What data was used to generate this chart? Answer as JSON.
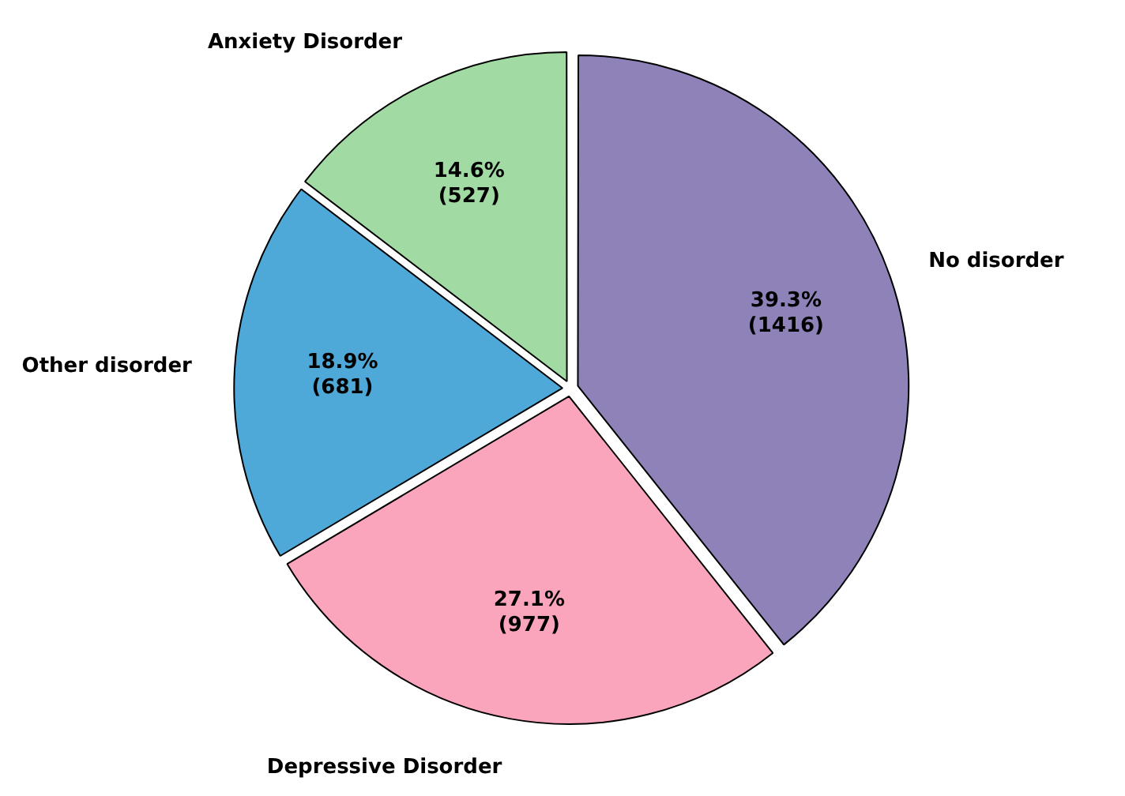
{
  "chart_data": {
    "type": "pie",
    "categories": [
      "No disorder",
      "Depressive Disorder",
      "Other disorder",
      "Anxiety Disorder"
    ],
    "values": [
      1416,
      977,
      681,
      527
    ],
    "colors": [
      "#8e82b9",
      "#fba5bd",
      "#4ea8d8",
      "#a2daa4"
    ],
    "value_labels": [
      "39.3%\n(1416)",
      "27.1%\n(977)",
      "18.9%\n(681)",
      "14.6%\n(527)"
    ],
    "legend": false
  }
}
